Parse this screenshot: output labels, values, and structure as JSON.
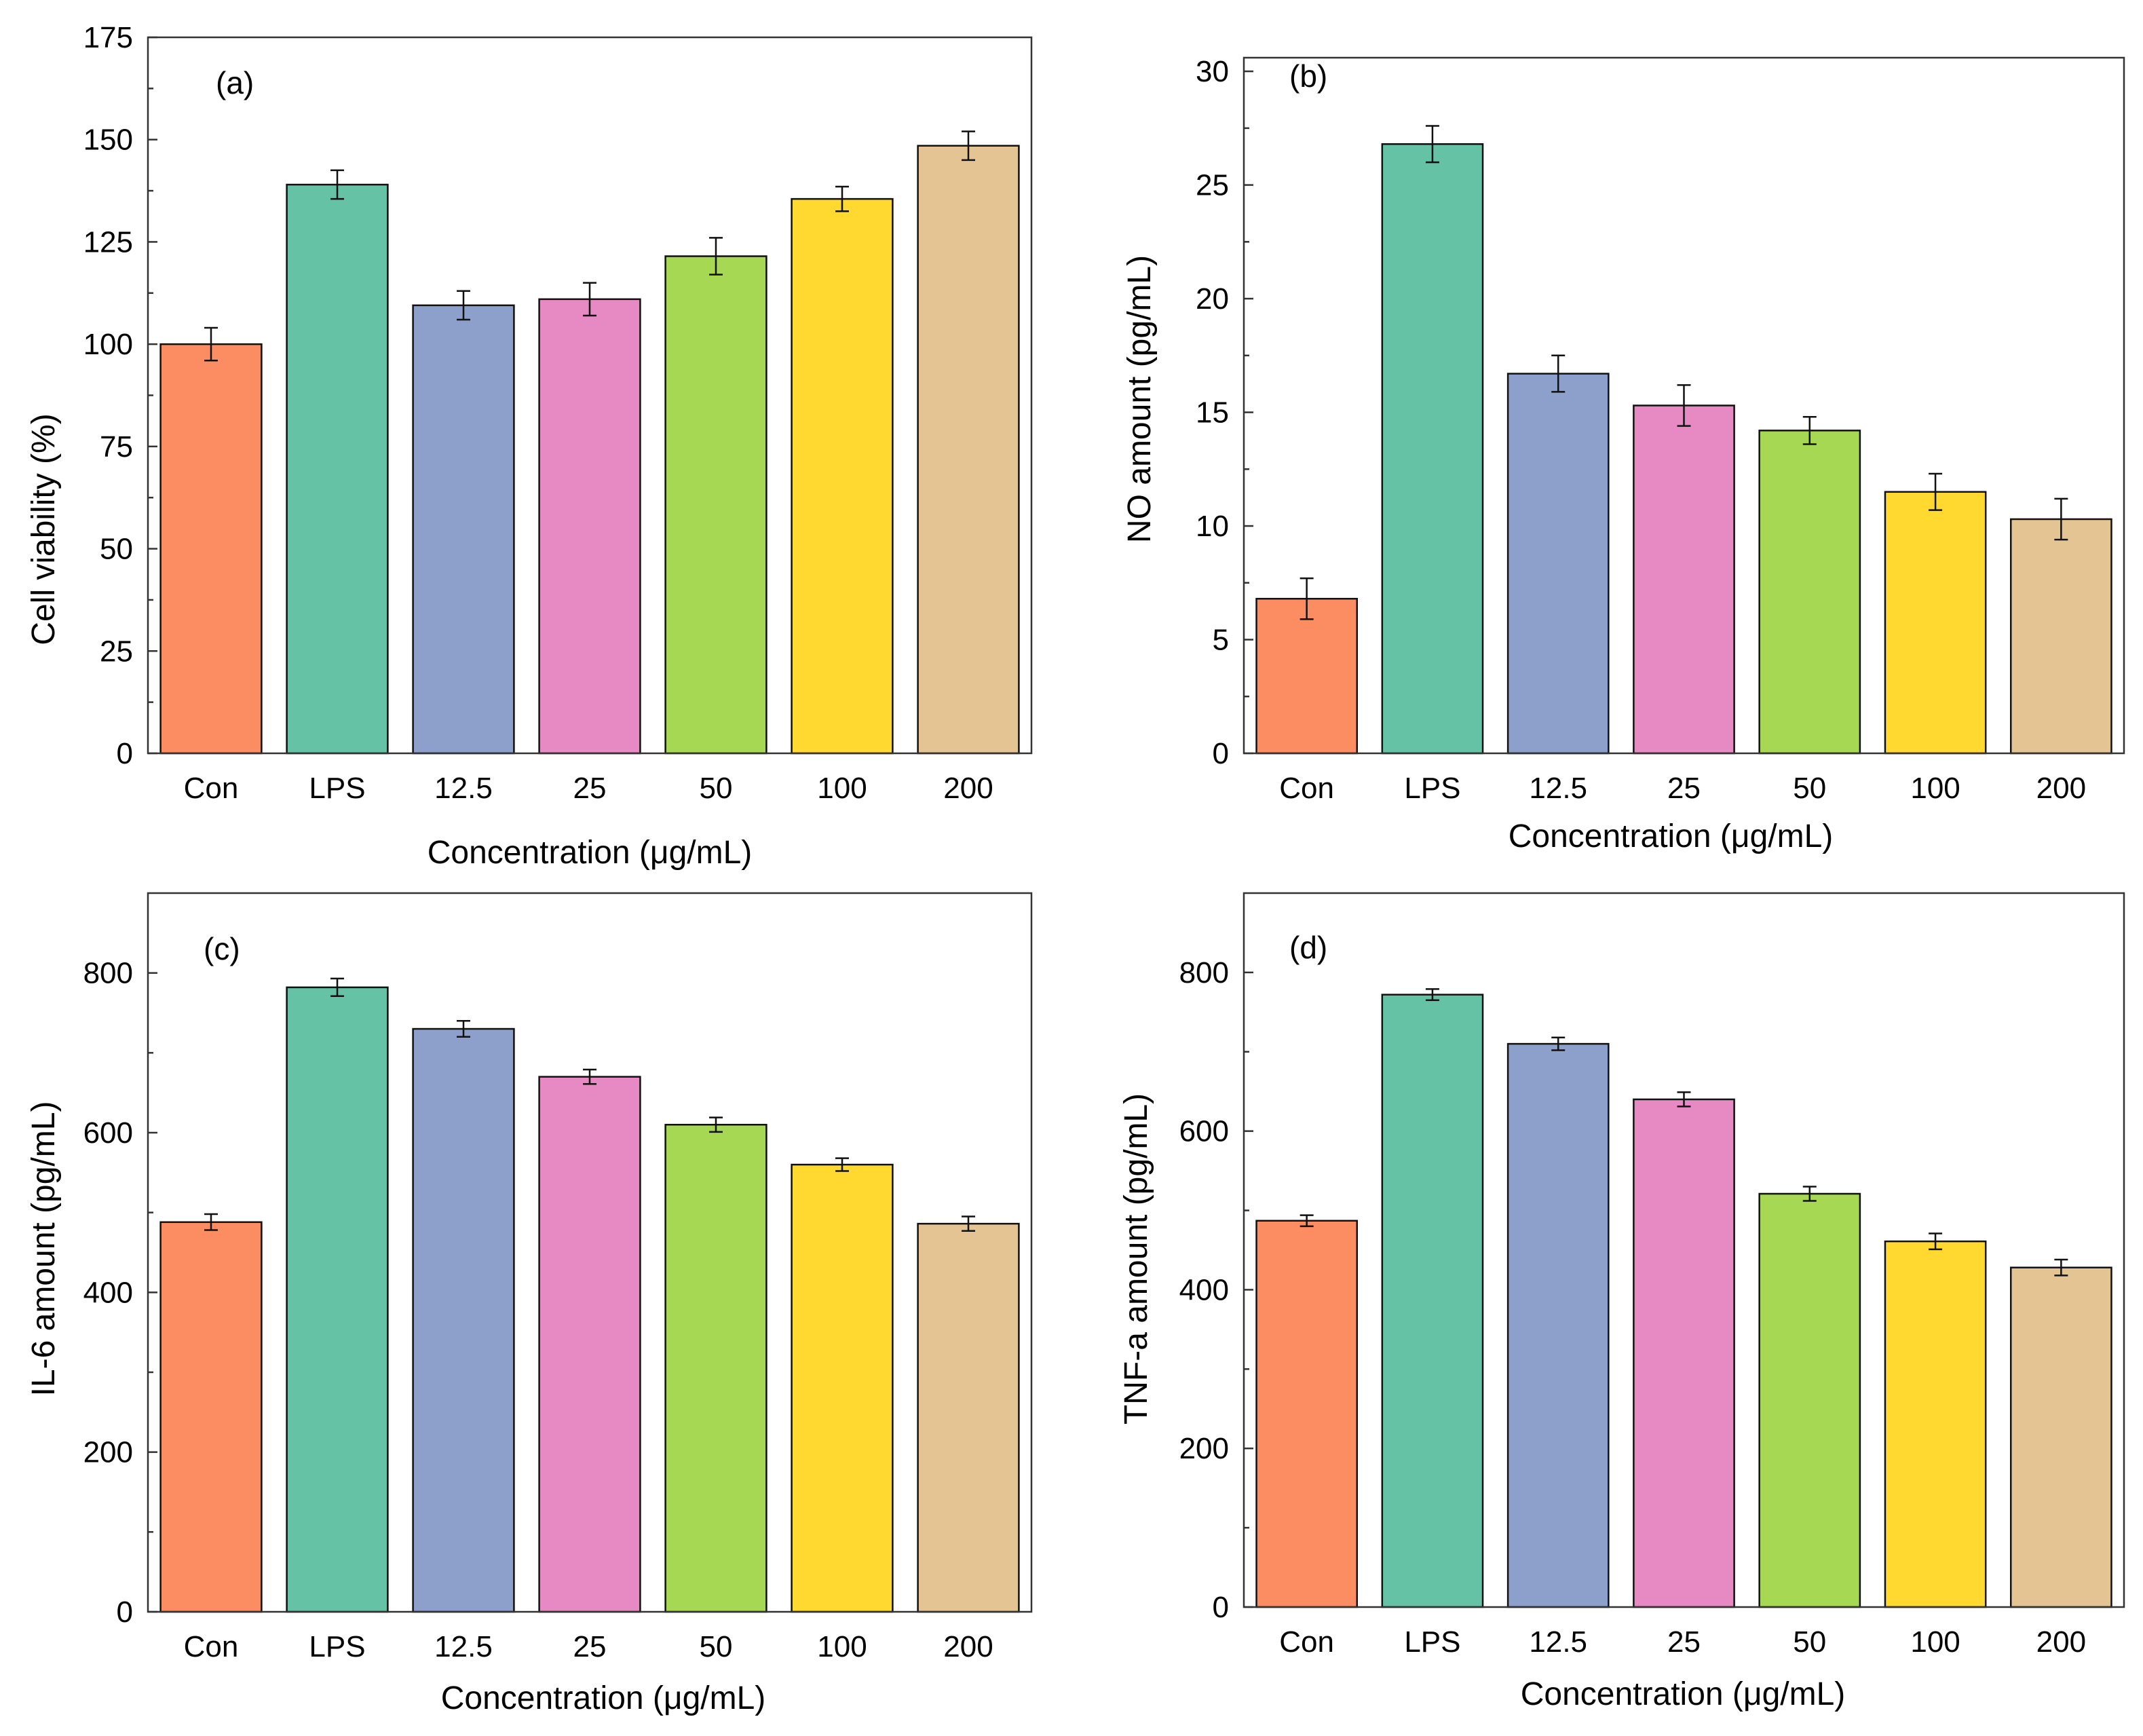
{
  "figure": {
    "bar_colors": [
      "#fc8d62",
      "#66c2a5",
      "#8da0cb",
      "#e78ac3",
      "#a6d854",
      "#ffd92f",
      "#e5c494"
    ]
  },
  "chart_data": [
    {
      "type": "bar",
      "panel": "(a)",
      "categories": [
        "Con",
        "LPS",
        "12.5",
        "25",
        "50",
        "100",
        "200"
      ],
      "values": [
        100,
        139,
        109.5,
        111,
        121.5,
        135.5,
        148.5
      ],
      "errors": [
        4,
        3.5,
        3.5,
        4,
        4.5,
        3,
        3.5
      ],
      "xlabel": "Concentration (μg/mL)",
      "ylabel": "Cell viability (%)",
      "ylim": [
        0,
        175
      ],
      "yticks": [
        0,
        25,
        50,
        75,
        100,
        125,
        150,
        175
      ],
      "ytick_labels": [
        "0",
        "25",
        "50",
        "75",
        "100",
        "125",
        "150",
        "175"
      ],
      "minor_ticks": true
    },
    {
      "type": "bar",
      "panel": "(b)",
      "categories": [
        "Con",
        "LPS",
        "12.5",
        "25",
        "50",
        "100",
        "200"
      ],
      "values": [
        6.8,
        26.8,
        16.7,
        15.3,
        14.2,
        11.5,
        10.3
      ],
      "errors": [
        0.9,
        0.8,
        0.8,
        0.9,
        0.6,
        0.8,
        0.9
      ],
      "xlabel": "Concentration (μg/mL)",
      "ylabel": "NO amount (pg/mL)",
      "ylim": [
        0,
        30.6
      ],
      "yticks": [
        0,
        5,
        10,
        15,
        20,
        25,
        30
      ],
      "ytick_labels": [
        "0",
        "5",
        "10",
        "15",
        "20",
        "25",
        "30"
      ],
      "minor_ticks": true
    },
    {
      "type": "bar",
      "panel": "(c)",
      "categories": [
        "Con",
        "LPS",
        "12.5",
        "25",
        "50",
        "100",
        "200"
      ],
      "values": [
        488,
        782,
        730,
        670,
        610,
        560,
        486
      ],
      "errors": [
        10,
        11,
        10,
        9,
        9,
        8,
        9
      ],
      "xlabel": "Concentration (μg/mL)",
      "ylabel": "IL-6 amount (pg/mL)",
      "ylim": [
        0,
        900
      ],
      "yticks": [
        0,
        200,
        400,
        600,
        800
      ],
      "ytick_labels": [
        "0",
        "200",
        "400",
        "600",
        "800"
      ],
      "minor_ticks": true
    },
    {
      "type": "bar",
      "panel": "(d)",
      "categories": [
        "Con",
        "LPS",
        "12.5",
        "25",
        "50",
        "100",
        "200"
      ],
      "values": [
        487,
        772,
        710,
        640,
        521,
        461,
        428
      ],
      "errors": [
        7,
        7,
        8,
        9,
        9,
        10,
        10
      ],
      "xlabel": "Concentration (μg/mL)",
      "ylabel": "TNF-a amount (pg/mL)",
      "ylim": [
        0,
        900
      ],
      "yticks": [
        0,
        200,
        400,
        600,
        800
      ],
      "ytick_labels": [
        "0",
        "200",
        "400",
        "600",
        "800"
      ],
      "minor_ticks": true
    }
  ]
}
